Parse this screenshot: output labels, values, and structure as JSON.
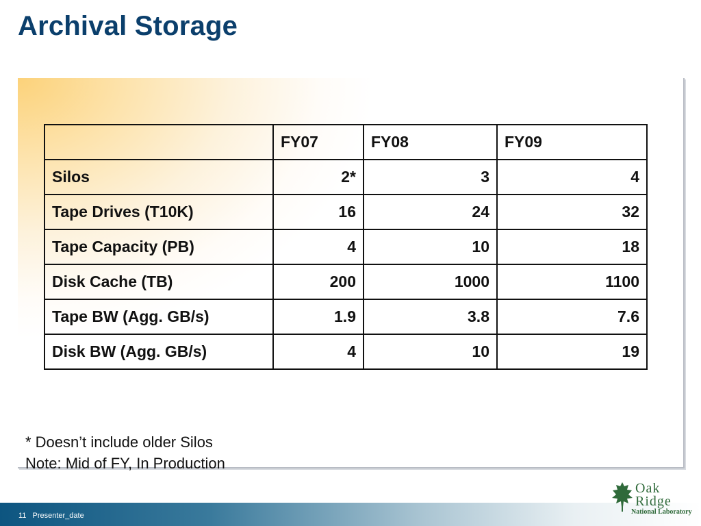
{
  "slide": {
    "title": "Archival Storage"
  },
  "table": {
    "headers": [
      "",
      "FY07",
      "FY08",
      "FY09"
    ],
    "rows": [
      [
        "Silos",
        "2*",
        "3",
        "4"
      ],
      [
        "Tape Drives (T10K)",
        "16",
        "24",
        "32"
      ],
      [
        "Tape Capacity (PB)",
        "4",
        "10",
        "18"
      ],
      [
        "Disk Cache (TB)",
        "200",
        "1000",
        "1100"
      ],
      [
        "Tape BW (Agg. GB/s)",
        "1.9",
        "3.8",
        "7.6"
      ],
      [
        "Disk BW (Agg. GB/s)",
        "4",
        "10",
        "19"
      ]
    ]
  },
  "notes": {
    "line1": "* Doesn’t include older Silos",
    "line2": "Note: Mid of FY, In Production"
  },
  "footer": {
    "page_number": "11",
    "presenter_date": "Presenter_date"
  },
  "logo": {
    "line1": "Oak",
    "line2": "Ridge",
    "line3": "National Laboratory",
    "icon": "oak-leaf-icon",
    "color": "#2f6a3a"
  },
  "colors": {
    "title": "#0b3f6c",
    "panel_gradient": "#fcd27a",
    "footer_bar": "#0d5580"
  }
}
